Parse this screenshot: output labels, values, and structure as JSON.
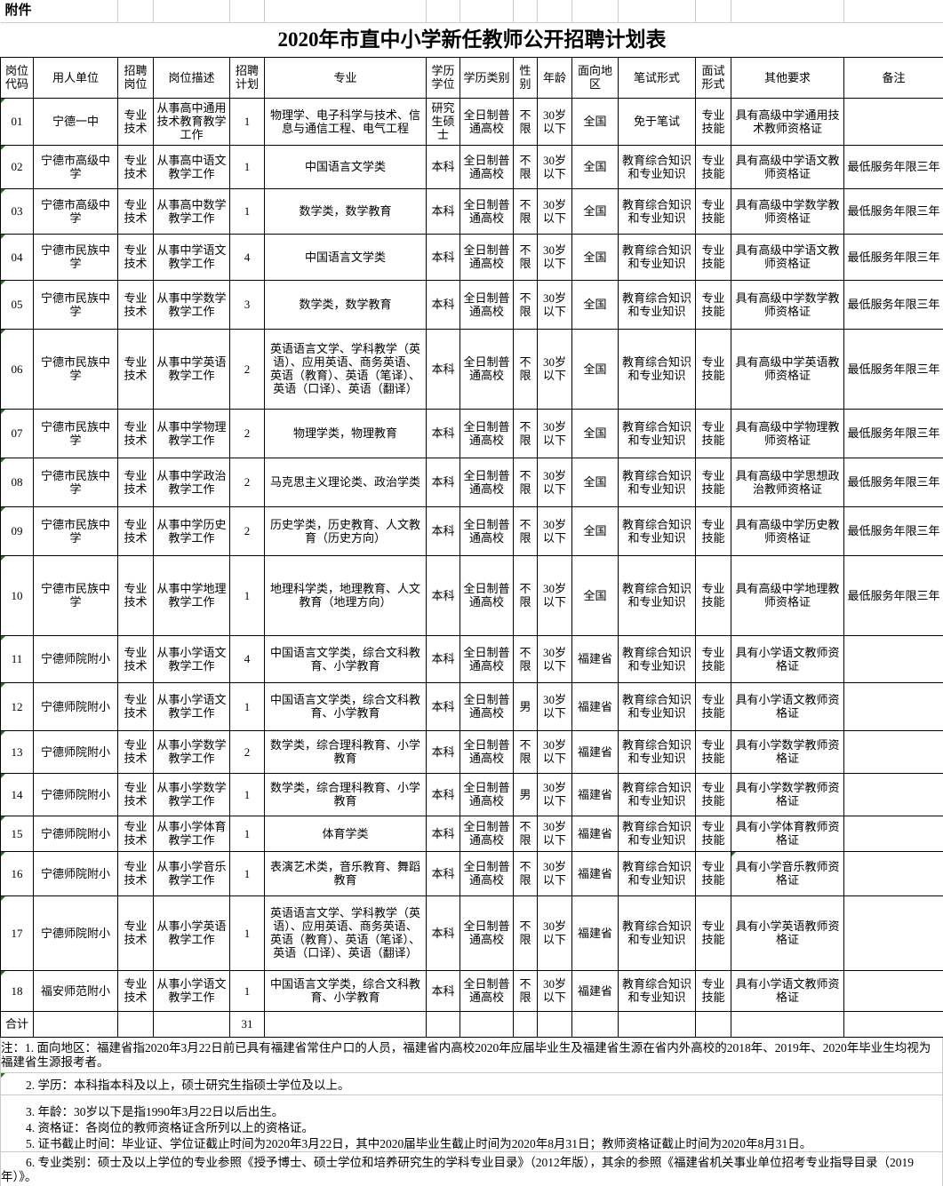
{
  "attachment_label": "附件",
  "title": "2020年市直中小学新任教师公开招聘计划表",
  "table": {
    "headers": [
      "岗位代码",
      "用人单位",
      "招聘岗位",
      "岗位描述",
      "招聘计划",
      "专业",
      "学历学位",
      "学历类别",
      "性别",
      "年龄",
      "面向地区",
      "笔试形式",
      "面试形式",
      "其他要求",
      "备注"
    ],
    "rows": [
      {
        "code": "01",
        "employer": "宁德一中",
        "job_type": "专业技术",
        "description": "从事高中通用技术教育教学工作",
        "plan": "1",
        "major": "物理学、电子科学与技术、信息与通信工程、电气工程",
        "degree": "研究生硕士",
        "edu_type": "全日制普通高校",
        "gender": "不限",
        "age": "30岁以下",
        "region": "全国",
        "written_test": "免于笔试",
        "interview": "专业技能",
        "other_requirements": "具有高级中学通用技术教师资格证",
        "remark": ""
      },
      {
        "code": "02",
        "employer": "宁德市高级中学",
        "job_type": "专业技术",
        "description": "从事高中语文教学工作",
        "plan": "1",
        "major": "中国语言文学类",
        "degree": "本科",
        "edu_type": "全日制普通高校",
        "gender": "不限",
        "age": "30岁以下",
        "region": "全国",
        "written_test": "教育综合知识和专业知识",
        "interview": "专业技能",
        "other_requirements": "具有高级中学语文教师资格证",
        "remark": "最低服务年限三年"
      },
      {
        "code": "03",
        "employer": "宁德市高级中学",
        "job_type": "专业技术",
        "description": "从事高中数学教学工作",
        "plan": "1",
        "major": "数学类，数学教育",
        "degree": "本科",
        "edu_type": "全日制普通高校",
        "gender": "不限",
        "age": "30岁以下",
        "region": "全国",
        "written_test": "教育综合知识和专业知识",
        "interview": "专业技能",
        "other_requirements": "具有高级中学数学教师资格证",
        "remark": "最低服务年限三年"
      },
      {
        "code": "04",
        "employer": "宁德市民族中学",
        "job_type": "专业技术",
        "description": "从事中学语文教学工作",
        "plan": "4",
        "major": "中国语言文学类",
        "degree": "本科",
        "edu_type": "全日制普通高校",
        "gender": "不限",
        "age": "30岁以下",
        "region": "全国",
        "written_test": "教育综合知识和专业知识",
        "interview": "专业技能",
        "other_requirements": "具有高级中学语文教师资格证",
        "remark": "最低服务年限三年"
      },
      {
        "code": "05",
        "employer": "宁德市民族中学",
        "job_type": "专业技术",
        "description": "从事中学数学教学工作",
        "plan": "3",
        "major": "数学类，数学教育",
        "degree": "本科",
        "edu_type": "全日制普通高校",
        "gender": "不限",
        "age": "30岁以下",
        "region": "全国",
        "written_test": "教育综合知识和专业知识",
        "interview": "专业技能",
        "other_requirements": "具有高级中学数学教师资格证",
        "remark": "最低服务年限三年"
      },
      {
        "code": "06",
        "employer": "宁德市民族中学",
        "job_type": "专业技术",
        "description": "从事中学英语教学工作",
        "plan": "2",
        "major": "英语语言文学、学科教学（英语）、应用英语、商务英语、英语（教育）、英语（笔译）、英语（口译）、英语（翻译）",
        "degree": "本科",
        "edu_type": "全日制普通高校",
        "gender": "不限",
        "age": "30岁以下",
        "region": "全国",
        "written_test": "教育综合知识和专业知识",
        "interview": "专业技能",
        "other_requirements": "具有高级中学英语教师资格证",
        "remark": "最低服务年限三年"
      },
      {
        "code": "07",
        "employer": "宁德市民族中学",
        "job_type": "专业技术",
        "description": "从事中学物理教学工作",
        "plan": "2",
        "major": "物理学类，物理教育",
        "degree": "本科",
        "edu_type": "全日制普通高校",
        "gender": "不限",
        "age": "30岁以下",
        "region": "全国",
        "written_test": "教育综合知识和专业知识",
        "interview": "专业技能",
        "other_requirements": "具有高级中学物理教师资格证",
        "remark": "最低服务年限三年"
      },
      {
        "code": "08",
        "employer": "宁德市民族中学",
        "job_type": "专业技术",
        "description": "从事中学政治教学工作",
        "plan": "2",
        "major": "马克思主义理论类、政治学类",
        "degree": "本科",
        "edu_type": "全日制普通高校",
        "gender": "不限",
        "age": "30岁以下",
        "region": "全国",
        "written_test": "教育综合知识和专业知识",
        "interview": "专业技能",
        "other_requirements": "具有高级中学思想政治教师资格证",
        "remark": "最低服务年限三年"
      },
      {
        "code": "09",
        "employer": "宁德市民族中学",
        "job_type": "专业技术",
        "description": "从事中学历史教学工作",
        "plan": "2",
        "major": "历史学类，历史教育、人文教育（历史方向）",
        "degree": "本科",
        "edu_type": "全日制普通高校",
        "gender": "不限",
        "age": "30岁以下",
        "region": "全国",
        "written_test": "教育综合知识和专业知识",
        "interview": "专业技能",
        "other_requirements": "具有高级中学历史教师资格证",
        "remark": "最低服务年限三年"
      },
      {
        "code": "10",
        "employer": "宁德市民族中学",
        "job_type": "专业技术",
        "description": "从事中学地理教学工作",
        "plan": "1",
        "major": "地理科学类，地理教育、人文教育（地理方向）",
        "degree": "本科",
        "edu_type": "全日制普通高校",
        "gender": "不限",
        "age": "30岁以下",
        "region": "全国",
        "written_test": "教育综合知识和专业知识",
        "interview": "专业技能",
        "other_requirements": "具有高级中学地理教师资格证",
        "remark": "最低服务年限三年"
      },
      {
        "code": "11",
        "employer": "宁德师院附小",
        "job_type": "专业技术",
        "description": "从事小学语文教学工作",
        "plan": "4",
        "major": "中国语言文学类，综合文科教育、小学教育",
        "degree": "本科",
        "edu_type": "全日制普通高校",
        "gender": "不限",
        "age": "30岁以下",
        "region": "福建省",
        "written_test": "教育综合知识和专业知识",
        "interview": "专业技能",
        "other_requirements": "具有小学语文教师资格证",
        "remark": ""
      },
      {
        "code": "12",
        "employer": "宁德师院附小",
        "job_type": "专业技术",
        "description": "从事小学语文教学工作",
        "plan": "1",
        "major": "中国语言文学类，综合文科教育、小学教育",
        "degree": "本科",
        "edu_type": "全日制普通高校",
        "gender": "男",
        "age": "30岁以下",
        "region": "福建省",
        "written_test": "教育综合知识和专业知识",
        "interview": "专业技能",
        "other_requirements": "具有小学语文教师资格证",
        "remark": ""
      },
      {
        "code": "13",
        "employer": "宁德师院附小",
        "job_type": "专业技术",
        "description": "从事小学数学教学工作",
        "plan": "2",
        "major": "数学类，综合理科教育、小学教育",
        "degree": "本科",
        "edu_type": "全日制普通高校",
        "gender": "不限",
        "age": "30岁以下",
        "region": "福建省",
        "written_test": "教育综合知识和专业知识",
        "interview": "专业技能",
        "other_requirements": "具有小学数学教师资格证",
        "remark": ""
      },
      {
        "code": "14",
        "employer": "宁德师院附小",
        "job_type": "专业技术",
        "description": "从事小学数学教学工作",
        "plan": "1",
        "major": "数学类，综合理科教育、小学教育",
        "degree": "本科",
        "edu_type": "全日制普通高校",
        "gender": "男",
        "age": "30岁以下",
        "region": "福建省",
        "written_test": "教育综合知识和专业知识",
        "interview": "专业技能",
        "other_requirements": "具有小学数学教师资格证",
        "remark": ""
      },
      {
        "code": "15",
        "employer": "宁德师院附小",
        "job_type": "专业技术",
        "description": "从事小学体育教学工作",
        "plan": "1",
        "major": "体育学类",
        "degree": "本科",
        "edu_type": "全日制普通高校",
        "gender": "不限",
        "age": "30岁以下",
        "region": "福建省",
        "written_test": "教育综合知识和专业知识",
        "interview": "专业技能",
        "other_requirements": "具有小学体育教师资格证",
        "remark": ""
      },
      {
        "code": "16",
        "employer": "宁德师院附小",
        "job_type": "专业技术",
        "description": "从事小学音乐教学工作",
        "plan": "1",
        "major": "表演艺术类，音乐教育、舞蹈教育",
        "degree": "本科",
        "edu_type": "全日制普通高校",
        "gender": "不限",
        "age": "30岁以下",
        "region": "福建省",
        "written_test": "教育综合知识和专业知识",
        "interview": "专业技能",
        "other_requirements": "具有小学音乐教师资格证",
        "remark": ""
      },
      {
        "code": "17",
        "employer": "宁德师院附小",
        "job_type": "专业技术",
        "description": "从事小学英语教学工作",
        "plan": "1",
        "major": "英语语言文学、学科教学（英语）、应用英语、商务英语、英语（教育）、英语（笔译）、英语（口译）、英语（翻译）",
        "degree": "本科",
        "edu_type": "全日制普通高校",
        "gender": "不限",
        "age": "30岁以下",
        "region": "福建省",
        "written_test": "教育综合知识和专业知识",
        "interview": "专业技能",
        "other_requirements": "具有小学英语教师资格证",
        "remark": ""
      },
      {
        "code": "18",
        "employer": "福安师范附小",
        "job_type": "专业技术",
        "description": "从事小学语文教学工作",
        "plan": "1",
        "major": "中国语言文学类，综合文科教育、小学教育",
        "degree": "本科",
        "edu_type": "全日制普通高校",
        "gender": "不限",
        "age": "30岁以下",
        "region": "福建省",
        "written_test": "教育综合知识和专业知识",
        "interview": "专业技能",
        "other_requirements": "具有小学语文教师资格证",
        "remark": ""
      }
    ],
    "total": {
      "label": "合计",
      "plan": "31"
    }
  },
  "notes": [
    "注：1. 面向地区：福建省指2020年3月22日前已具有福建省常住户口的人员，福建省内高校2020年应届毕业生及福建省生源在省内外高校的2018年、2019年、2020年毕业生均视为福建省生源报考者。",
    "2. 学历：本科指本科及以上，硕士研究生指硕士学位及以上。",
    "3. 年龄：30岁以下是指1990年3月22日以后出生。",
    "4. 资格证：各岗位的教师资格证含所列以上的资格证。",
    "5. 证书截止时间：毕业证、学位证截止时间为2020年3月22日，其中2020届毕业生截止时间为2020年8月31日；教师资格证截止时间为2020年8月31日。",
    "6. 专业类别：硕士及以上学位的专业参照《授予博士、硕士学位和培养研究生的学科专业目录》（2012年版），其余的参照《福建省机关事业单位招考专业指导目录（2019年）》。"
  ]
}
